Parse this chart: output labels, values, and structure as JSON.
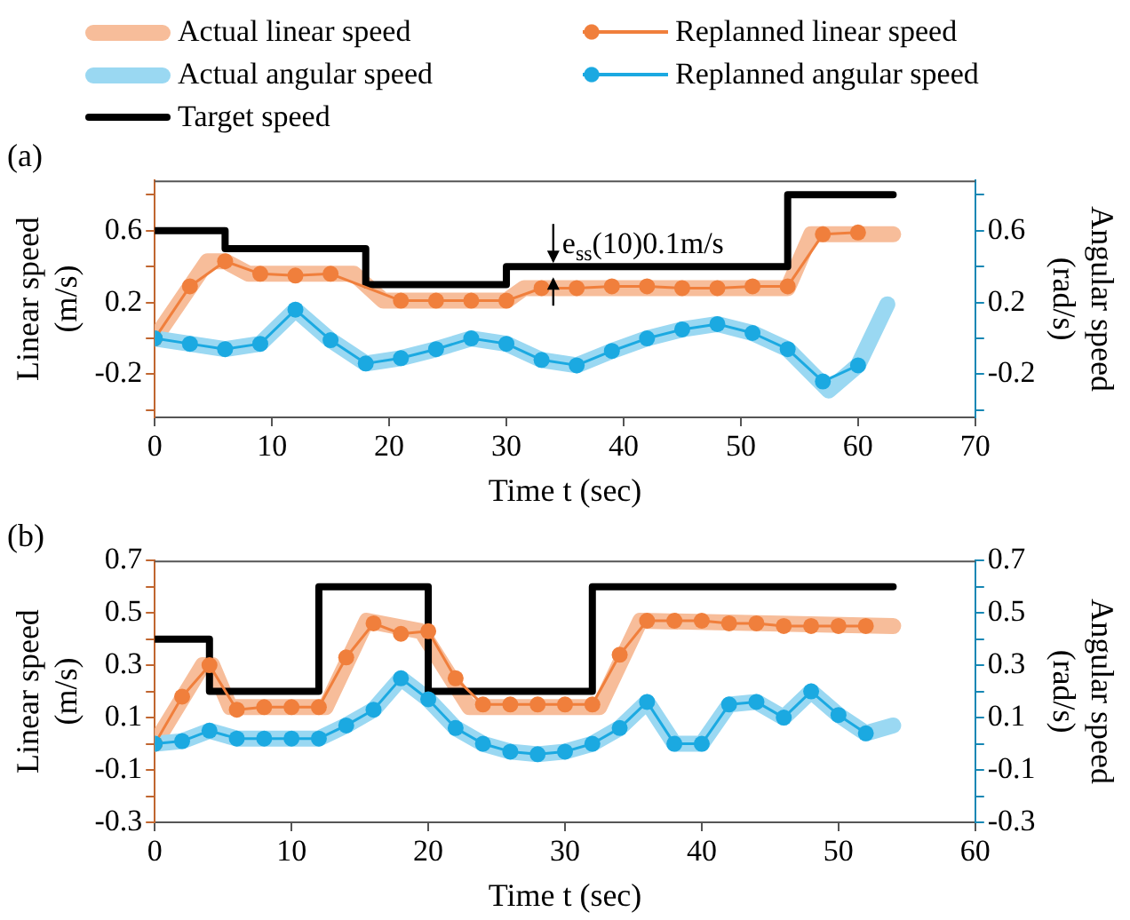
{
  "chart_data": [
    {
      "type": "line",
      "title": "(a)",
      "xlabel": "Time t (sec)",
      "ylabel": "Linear speed\n(m/s)",
      "y2label": "Angular speed\n(rad/s)",
      "xlim": [
        0,
        70
      ],
      "xticks": [
        0,
        10,
        20,
        30,
        40,
        50,
        60,
        70
      ],
      "ylim": [
        -0.44,
        0.88
      ],
      "yticks": [
        {
          "value": 0.8,
          "label": null
        },
        0.6,
        {
          "value": 0.4,
          "label": null
        },
        0.2,
        {
          "value": 0,
          "label": null
        },
        -0.2,
        {
          "value": -0.4,
          "label": null
        }
      ],
      "y2lim": [
        -0.44,
        0.88
      ],
      "y2ticks": [
        {
          "value": 0.8,
          "label": null
        },
        0.6,
        {
          "value": 0.4,
          "label": null
        },
        0.2,
        {
          "value": 0,
          "label": null
        },
        -0.2,
        {
          "value": -0.4,
          "label": null
        }
      ],
      "legend": "top",
      "annotations": [
        {
          "text": "e$_{ss}$(10)0.1m/s",
          "x": 34,
          "y": 0.4
        }
      ],
      "series": [
        {
          "name": "Actual linear speed",
          "type": "line",
          "marker": "none",
          "color": "#f7bd9a",
          "x": [
            0,
            4.5,
            6,
            8,
            17,
            19.5,
            30,
            31.5,
            54,
            56,
            63
          ],
          "values": [
            0,
            0.43,
            0.43,
            0.36,
            0.36,
            0.21,
            0.21,
            0.28,
            0.28,
            0.58,
            0.58
          ]
        },
        {
          "name": "Replanned linear speed",
          "type": "line",
          "marker": "circle",
          "color": "#f07f3c",
          "x": [
            0,
            3,
            6,
            9,
            12,
            15,
            21,
            24,
            27,
            30,
            33,
            36,
            39,
            42,
            45,
            48,
            51,
            54,
            57,
            60
          ],
          "values": [
            0,
            0.29,
            0.43,
            0.36,
            0.35,
            0.36,
            0.21,
            0.21,
            0.21,
            0.21,
            0.28,
            0.28,
            0.29,
            0.29,
            0.28,
            0.28,
            0.29,
            0.29,
            0.58,
            0.59
          ]
        },
        {
          "name": "Actual angular speed",
          "type": "line",
          "marker": "none",
          "color": "#9ad8f2",
          "axis": "y2",
          "x": [
            0,
            3,
            6,
            9,
            12,
            15,
            18,
            21,
            24,
            27,
            30,
            33,
            36,
            39,
            42,
            45,
            48,
            51,
            54,
            57.5,
            60,
            62.5
          ],
          "values": [
            0,
            -0.03,
            -0.06,
            -0.03,
            0.16,
            -0.01,
            -0.14,
            -0.11,
            -0.06,
            0,
            -0.03,
            -0.12,
            -0.15,
            -0.07,
            0,
            0.05,
            0.08,
            0.03,
            -0.06,
            -0.29,
            -0.15,
            0.19
          ]
        },
        {
          "name": "Replanned angular speed",
          "type": "line",
          "marker": "circle",
          "color": "#1ba9e1",
          "axis": "y2",
          "x": [
            0,
            3,
            6,
            9,
            12,
            15,
            18,
            21,
            24,
            27,
            30,
            33,
            36,
            39,
            42,
            45,
            48,
            51,
            54,
            57,
            60
          ],
          "values": [
            0,
            -0.03,
            -0.06,
            -0.03,
            0.16,
            -0.01,
            -0.14,
            -0.11,
            -0.06,
            0,
            -0.03,
            -0.12,
            -0.15,
            -0.07,
            0,
            0.05,
            0.08,
            0.03,
            -0.06,
            -0.24,
            -0.15
          ]
        },
        {
          "name": "Target speed",
          "type": "step",
          "marker": "none",
          "color": "#000000",
          "x": [
            0,
            6,
            18,
            30,
            54,
            63
          ],
          "values": [
            0.6,
            0.5,
            0.3,
            0.4,
            0.8,
            0.8
          ]
        }
      ]
    },
    {
      "type": "line",
      "title": "(b)",
      "xlabel": "Time t (sec)",
      "ylabel": "Linear speed\n(m/s)",
      "y2label": "Angular speed\n(rad/s)",
      "xlim": [
        0,
        60
      ],
      "xticks": [
        0,
        10,
        20,
        30,
        40,
        50,
        60
      ],
      "ylim": [
        -0.3,
        0.7
      ],
      "yticks": [
        0.7,
        {
          "value": 0.6,
          "label": null
        },
        0.5,
        {
          "value": 0.4,
          "label": null
        },
        0.3,
        {
          "value": 0.2,
          "label": null
        },
        0.1,
        {
          "value": 0,
          "label": null
        },
        -0.1,
        {
          "value": -0.2,
          "label": null
        },
        -0.3
      ],
      "y2lim": [
        -0.3,
        0.7
      ],
      "y2ticks": [
        0.7,
        {
          "value": 0.6,
          "label": null
        },
        0.5,
        {
          "value": 0.4,
          "label": null
        },
        0.3,
        {
          "value": 0.2,
          "label": null
        },
        0.1,
        {
          "value": 0,
          "label": null
        },
        -0.1,
        {
          "value": -0.2,
          "label": null
        },
        -0.3
      ],
      "series": [
        {
          "type": "line",
          "marker": "none",
          "color": "#f7bd9a",
          "x": [
            0,
            3.5,
            4.2,
            5.5,
            12.5,
            15.5,
            19.5,
            23,
            32.5,
            35.5,
            54
          ],
          "values": [
            0,
            0.3,
            0.3,
            0.14,
            0.14,
            0.47,
            0.43,
            0.14,
            0.14,
            0.47,
            0.45
          ]
        },
        {
          "type": "line",
          "marker": "circle",
          "color": "#f07f3c",
          "x": [
            0,
            2,
            4,
            6,
            8,
            10,
            12,
            14,
            16,
            18,
            20,
            22,
            24,
            26,
            28,
            30,
            32,
            34,
            36,
            38,
            40,
            42,
            44,
            46,
            48,
            50,
            52
          ],
          "values": [
            0,
            0.18,
            0.3,
            0.13,
            0.14,
            0.14,
            0.14,
            0.33,
            0.46,
            0.42,
            0.43,
            0.25,
            0.15,
            0.15,
            0.15,
            0.15,
            0.15,
            0.34,
            0.47,
            0.47,
            0.47,
            0.46,
            0.46,
            0.45,
            0.45,
            0.45,
            0.45
          ]
        },
        {
          "type": "line",
          "marker": "none",
          "color": "#9ad8f2",
          "axis": "y2",
          "x": [
            0,
            2,
            4,
            6,
            8,
            10,
            12,
            14,
            16,
            18,
            20,
            22,
            24,
            26,
            28,
            30,
            32,
            34,
            36,
            38,
            40,
            42,
            44,
            46,
            48,
            50,
            52,
            54
          ],
          "values": [
            0,
            0.01,
            0.05,
            0.02,
            0.02,
            0.02,
            0.02,
            0.07,
            0.13,
            0.25,
            0.17,
            0.06,
            0,
            -0.03,
            -0.04,
            -0.03,
            0,
            0.06,
            0.16,
            0,
            0,
            0.15,
            0.16,
            0.1,
            0.2,
            0.11,
            0.04,
            0.07
          ]
        },
        {
          "type": "line",
          "marker": "circle",
          "color": "#1ba9e1",
          "axis": "y2",
          "x": [
            0,
            2,
            4,
            6,
            8,
            10,
            12,
            14,
            16,
            18,
            20,
            22,
            24,
            26,
            28,
            30,
            32,
            34,
            36,
            38,
            40,
            42,
            44,
            46,
            48,
            50,
            52
          ],
          "values": [
            0,
            0.01,
            0.05,
            0.02,
            0.02,
            0.02,
            0.02,
            0.07,
            0.13,
            0.25,
            0.17,
            0.06,
            0,
            -0.03,
            -0.04,
            -0.03,
            0,
            0.06,
            0.16,
            0,
            0,
            0.15,
            0.16,
            0.1,
            0.2,
            0.11,
            0.04
          ]
        },
        {
          "type": "step",
          "marker": "none",
          "color": "#000000",
          "x": [
            0,
            4,
            12,
            20,
            32,
            54
          ],
          "values": [
            0.4,
            0.2,
            0.6,
            0.2,
            0.6,
            0.6
          ]
        }
      ]
    }
  ]
}
